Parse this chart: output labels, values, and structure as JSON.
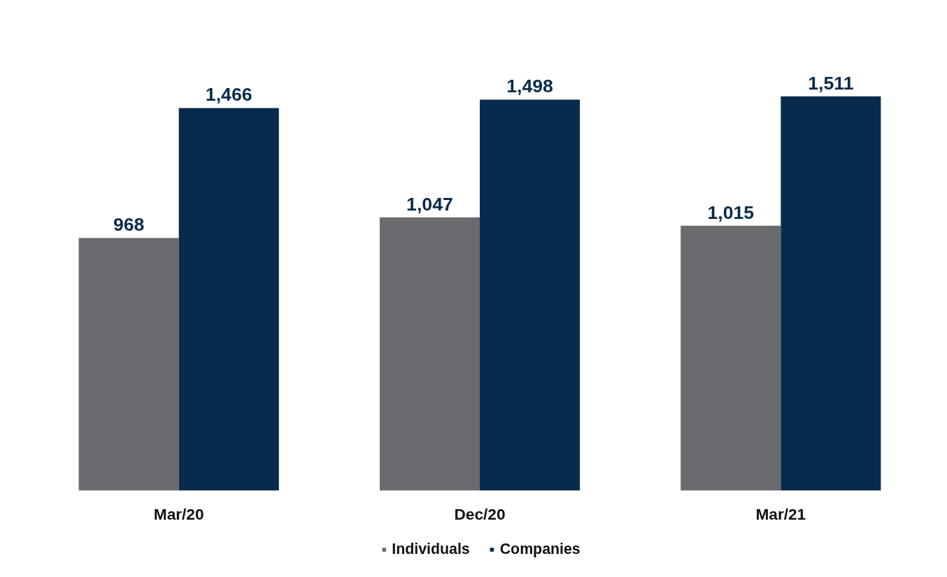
{
  "chart_data": {
    "type": "bar",
    "categories": [
      "Mar/20",
      "Dec/20",
      "Mar/21"
    ],
    "series": [
      {
        "name": "Individuals",
        "color": "#6b6a6f",
        "values": [
          968,
          1047,
          1015
        ],
        "value_labels": [
          "968",
          "1,047",
          "1,015"
        ]
      },
      {
        "name": "Companies",
        "color": "#082b4b",
        "values": [
          1466,
          1498,
          1511
        ],
        "value_labels": [
          "1,466",
          "1,498",
          "1,511"
        ]
      }
    ],
    "legend": "bottom",
    "grid": false
  }
}
